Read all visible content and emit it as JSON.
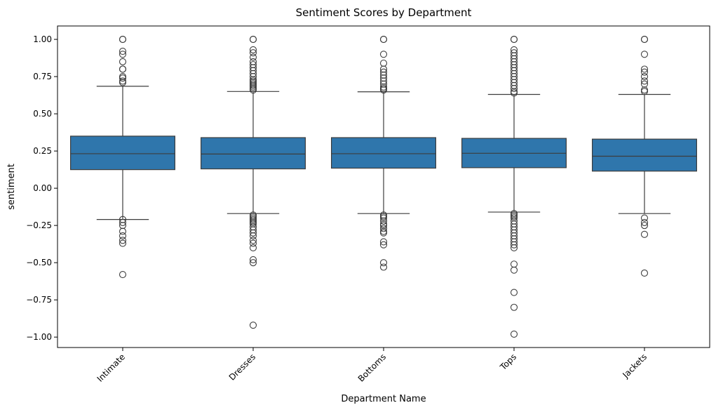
{
  "chart_data": {
    "type": "box",
    "title": "Sentiment Scores by Department",
    "xlabel": "Department Name",
    "ylabel": "sentiment",
    "ylim": [
      -1.07,
      1.09
    ],
    "yticks": [
      1.0,
      0.75,
      0.5,
      0.25,
      0.0,
      -0.25,
      -0.5,
      -0.75,
      -1.0
    ],
    "ytick_labels": [
      "1.00",
      "0.75",
      "0.50",
      "0.25",
      "0.00",
      "−0.25",
      "−0.50",
      "−0.75",
      "−1.00"
    ],
    "categories": [
      "Intimate",
      "Dresses",
      "Bottoms",
      "Tops",
      "Jackets"
    ],
    "grid": false,
    "box_color": "#2f76ac",
    "boxes": [
      {
        "category": "Intimate",
        "q1": 0.125,
        "median": 0.232,
        "q3": 0.35,
        "whisker_low": -0.21,
        "whisker_high": 0.685,
        "outliers": [
          1.0,
          1.0,
          0.92,
          0.9,
          0.85,
          0.8,
          0.8,
          0.75,
          0.74,
          0.72,
          0.71,
          -0.21,
          -0.23,
          -0.25,
          -0.29,
          -0.32,
          -0.35,
          -0.37,
          -0.58
        ]
      },
      {
        "category": "Dresses",
        "q1": 0.13,
        "median": 0.23,
        "q3": 0.34,
        "whisker_low": -0.17,
        "whisker_high": 0.65,
        "outliers": [
          1.0,
          1.0,
          0.93,
          0.91,
          0.88,
          0.85,
          0.83,
          0.81,
          0.79,
          0.77,
          0.75,
          0.73,
          0.72,
          0.71,
          0.7,
          0.69,
          0.68,
          0.67,
          0.66,
          -0.18,
          -0.19,
          -0.2,
          -0.21,
          -0.22,
          -0.23,
          -0.24,
          -0.26,
          -0.28,
          -0.3,
          -0.32,
          -0.35,
          -0.37,
          -0.4,
          -0.48,
          -0.5,
          -0.92
        ]
      },
      {
        "category": "Bottoms",
        "q1": 0.135,
        "median": 0.232,
        "q3": 0.34,
        "whisker_low": -0.17,
        "whisker_high": 0.648,
        "outliers": [
          1.0,
          1.0,
          0.9,
          0.84,
          0.8,
          0.78,
          0.76,
          0.74,
          0.72,
          0.7,
          0.68,
          0.67,
          0.66,
          -0.18,
          -0.19,
          -0.2,
          -0.22,
          -0.24,
          -0.25,
          -0.27,
          -0.29,
          -0.3,
          -0.36,
          -0.38,
          -0.5,
          -0.53
        ]
      },
      {
        "category": "Tops",
        "q1": 0.138,
        "median": 0.235,
        "q3": 0.335,
        "whisker_low": -0.16,
        "whisker_high": 0.63,
        "outliers": [
          1.0,
          1.0,
          0.93,
          0.91,
          0.89,
          0.87,
          0.85,
          0.83,
          0.81,
          0.79,
          0.77,
          0.75,
          0.73,
          0.71,
          0.69,
          0.67,
          0.65,
          0.64,
          -0.17,
          -0.18,
          -0.19,
          -0.2,
          -0.22,
          -0.24,
          -0.26,
          -0.28,
          -0.3,
          -0.32,
          -0.34,
          -0.36,
          -0.38,
          -0.4,
          -0.51,
          -0.55,
          -0.7,
          -0.8,
          -0.98
        ]
      },
      {
        "category": "Jackets",
        "q1": 0.115,
        "median": 0.215,
        "q3": 0.33,
        "whisker_low": -0.17,
        "whisker_high": 0.63,
        "outliers": [
          1.0,
          1.0,
          0.9,
          0.8,
          0.78,
          0.75,
          0.72,
          0.7,
          0.66,
          0.65,
          -0.2,
          -0.23,
          -0.25,
          -0.31,
          -0.57
        ]
      }
    ]
  }
}
